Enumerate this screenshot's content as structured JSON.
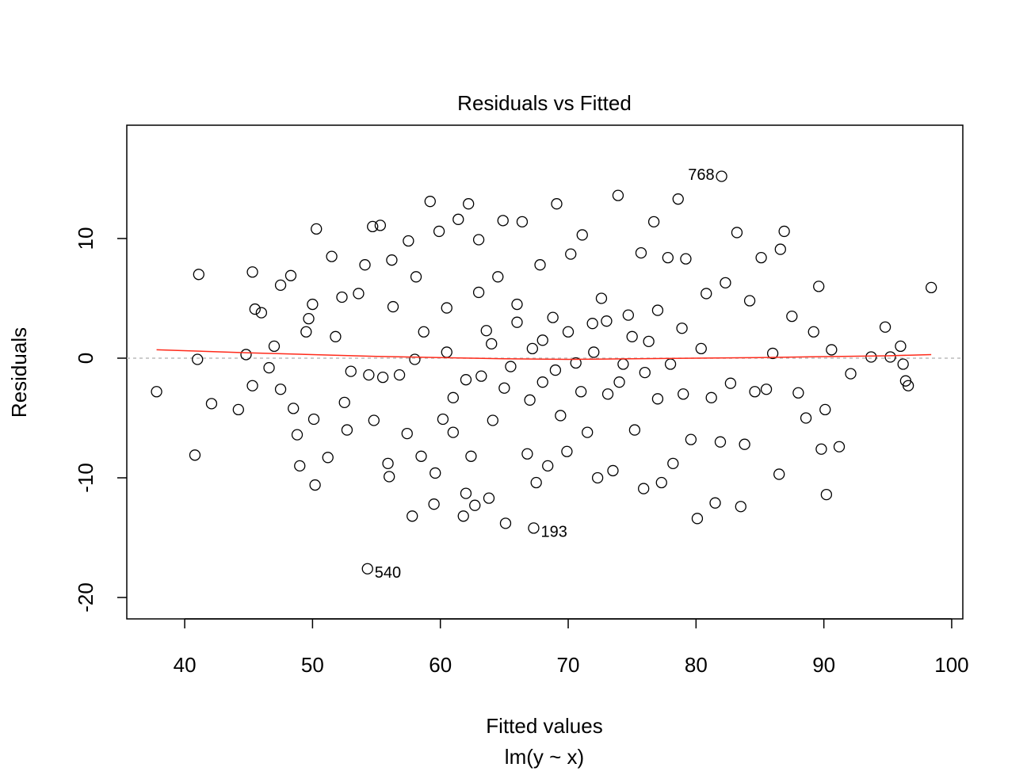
{
  "chart_data": {
    "type": "scatter",
    "title": "Residuals vs Fitted",
    "x_label": "Fitted values",
    "subtitle": "lm(y ~ x)",
    "y_label": "Residuals",
    "xlim": [
      35.47,
      100.87
    ],
    "ylim": [
      -21.79,
      19.47
    ],
    "xticks": [
      40,
      50,
      60,
      70,
      80,
      90,
      100
    ],
    "yticks": [
      -20,
      -10,
      0,
      10
    ],
    "hline": 0,
    "hline_color": "#bbbbbb",
    "point_color": "#000000",
    "series": [
      {
        "x": [
          37.8,
          40.8,
          41.1,
          41.0,
          42.1,
          44.2,
          44.8,
          45.3,
          45.5,
          45.3,
          46,
          46.6,
          47,
          47.5,
          47.5,
          48.3,
          48.5,
          48.8,
          49,
          49.5,
          49.7,
          50.0,
          50.1,
          50.3,
          50.2,
          51.2,
          51.5,
          51.8,
          52.3,
          52.5,
          52.7,
          53,
          53.6,
          54.1,
          54.4,
          54.7,
          54.8,
          55.3,
          55.5,
          55.9,
          56.0,
          56.2,
          56.3,
          56.8,
          57.4,
          57.5,
          57.8,
          58.0,
          58.1,
          58.5,
          58.7,
          59.2,
          59.5,
          59.6,
          59.9,
          60.2,
          60.5,
          61.0,
          61.4,
          61.8,
          62.0,
          62.2,
          62.4,
          62.7,
          63.0,
          63.2,
          63.6,
          63.8,
          64.1,
          64.5,
          64.9,
          65.1,
          65.5,
          66.0,
          66.4,
          66.8,
          67.2,
          67.5,
          67.8,
          68.0,
          68.4,
          68.8,
          69.1,
          69.4,
          69.9,
          70.2,
          70.6,
          71.1,
          71.5,
          71.9,
          72.3,
          72.6,
          73.1,
          73.5,
          73.9,
          74.3,
          74.7,
          75.2,
          75.7,
          75.9,
          76.3,
          76.7,
          77.0,
          77.3,
          77.8,
          78.2,
          78.6,
          78.9,
          79.2,
          79.6,
          80.1,
          80.4,
          80.8,
          81.2,
          81.5,
          81.9,
          82.3,
          82.7,
          83.2,
          83.5,
          83.8,
          84.2,
          84.6,
          85.1,
          85.5,
          86.0,
          86.5,
          86.6,
          86.9,
          87.5,
          88.0,
          88.6,
          89.2,
          89.6,
          89.8,
          90.1,
          90.2,
          90.6,
          91.2,
          92.1,
          93.7,
          94.8,
          95.2,
          96.0,
          96.2,
          96.4,
          96.6,
          98.4,
          60.5,
          62,
          64,
          65,
          66,
          67,
          68,
          69,
          70,
          71,
          72,
          73,
          74,
          75,
          76,
          77,
          78,
          79,
          61,
          63
        ],
        "values": [
          -2.8,
          -8.1,
          7.0,
          -0.1,
          -3.8,
          -4.3,
          0.3,
          7.2,
          4.1,
          -2.3,
          3.8,
          -0.8,
          1.0,
          6.1,
          -2.6,
          6.9,
          -4.2,
          -6.4,
          -9.0,
          2.2,
          3.3,
          4.5,
          -5.1,
          10.8,
          -10.6,
          -8.3,
          8.5,
          1.8,
          5.1,
          -3.7,
          -6.0,
          -1.1,
          5.4,
          7.8,
          -1.4,
          11.0,
          -5.2,
          11.1,
          -1.6,
          -8.8,
          -9.9,
          8.2,
          4.3,
          -1.4,
          -6.3,
          9.8,
          -13.2,
          -0.1,
          6.8,
          -8.2,
          2.2,
          13.1,
          -12.2,
          -9.6,
          10.6,
          -5.1,
          0.5,
          -6.2,
          11.6,
          -13.2,
          -11.3,
          12.9,
          -8.2,
          -12.3,
          9.9,
          -1.5,
          2.3,
          -11.7,
          -5.2,
          6.8,
          11.5,
          -13.8,
          -0.7,
          4.5,
          11.4,
          -8.0,
          0.8,
          -10.4,
          7.8,
          -2.0,
          -9.0,
          3.4,
          12.9,
          -4.8,
          -7.8,
          8.7,
          -0.4,
          10.3,
          -6.2,
          2.9,
          -10.0,
          5.0,
          -3.0,
          -9.4,
          13.6,
          -0.5,
          3.6,
          -6.0,
          8.8,
          -10.9,
          1.4,
          11.4,
          -3.4,
          -10.4,
          8.4,
          -8.8,
          13.3,
          2.5,
          8.3,
          -6.8,
          -13.4,
          0.8,
          5.4,
          -3.3,
          -12.1,
          -7.0,
          6.3,
          -2.1,
          10.5,
          -12.4,
          -7.2,
          4.8,
          -2.8,
          8.4,
          -2.6,
          0.4,
          -9.7,
          9.1,
          10.6,
          3.5,
          -2.9,
          -5.0,
          2.2,
          6.0,
          -7.6,
          -4.3,
          -11.4,
          0.7,
          -7.4,
          -1.3,
          0.1,
          2.6,
          0.1,
          1.0,
          -0.5,
          -1.9,
          -2.3,
          5.9,
          4.2,
          -1.8,
          1.2,
          -2.5,
          3.0,
          -3.5,
          1.5,
          -1.0,
          2.2,
          -2.8,
          0.5,
          3.1,
          -2.0,
          1.8,
          -1.2,
          4.0,
          -0.5,
          -3.0,
          -3.3,
          5.5
        ]
      }
    ],
    "annotations": [
      {
        "label": "768",
        "x": 82,
        "y": 15.2
      },
      {
        "label": "193",
        "x": 67.3,
        "y": -14.2
      },
      {
        "label": "540",
        "x": 54.3,
        "y": -17.6
      }
    ],
    "smooth": {
      "color": "#ff2a1a",
      "x": [
        37.8,
        45,
        55,
        65,
        70,
        75,
        85,
        95,
        98.4
      ],
      "y": [
        0.7,
        0.45,
        0.15,
        -0.05,
        -0.1,
        -0.05,
        0.05,
        0.2,
        0.3
      ]
    }
  }
}
